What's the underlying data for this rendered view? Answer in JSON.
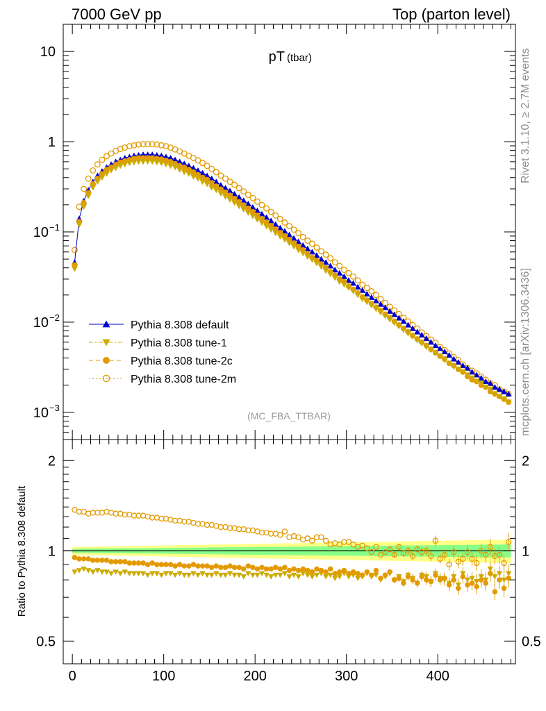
{
  "header": {
    "left": "7000 GeV pp",
    "right": "Top (parton level)"
  },
  "side_text": {
    "upper": "Rivet 3.1.10, ≥ 2.7M events",
    "lower": "mcplots.cern.ch [arXiv:1306.3436]"
  },
  "chart_data": [
    {
      "type": "scatter",
      "title": "pT",
      "title_sub": "(tbar)",
      "watermark": "(MC_FBA_TTBAR)",
      "xlim": [
        -10,
        485
      ],
      "ylim": [
        0.0005,
        20
      ],
      "yscale": "log",
      "x_ticks": [
        0,
        100,
        200,
        300,
        400
      ],
      "y_ticks": [
        {
          "value": 10,
          "label": "10"
        },
        {
          "value": 1,
          "label": "1"
        },
        {
          "value": 0.1,
          "label": "10",
          "exp": "−1"
        },
        {
          "value": 0.01,
          "label": "10",
          "exp": "−2"
        },
        {
          "value": 0.001,
          "label": "10",
          "exp": "−3"
        }
      ],
      "legend_position": "lower-left",
      "x": [
        2.5,
        7.5,
        12.5,
        17.5,
        22.5,
        27.5,
        32.5,
        37.5,
        42.5,
        47.5,
        52.5,
        57.5,
        62.5,
        67.5,
        72.5,
        77.5,
        82.5,
        87.5,
        92.5,
        97.5,
        102.5,
        107.5,
        112.5,
        117.5,
        122.5,
        127.5,
        132.5,
        137.5,
        142.5,
        147.5,
        152.5,
        157.5,
        162.5,
        167.5,
        172.5,
        177.5,
        182.5,
        187.5,
        192.5,
        197.5,
        202.5,
        207.5,
        212.5,
        217.5,
        222.5,
        227.5,
        232.5,
        237.5,
        242.5,
        247.5,
        252.5,
        257.5,
        262.5,
        267.5,
        272.5,
        277.5,
        282.5,
        287.5,
        292.5,
        297.5,
        302.5,
        307.5,
        312.5,
        317.5,
        322.5,
        327.5,
        332.5,
        337.5,
        342.5,
        347.5,
        352.5,
        357.5,
        362.5,
        367.5,
        372.5,
        377.5,
        382.5,
        387.5,
        392.5,
        397.5,
        402.5,
        407.5,
        412.5,
        417.5,
        422.5,
        427.5,
        432.5,
        437.5,
        442.5,
        447.5,
        452.5,
        457.5,
        462.5,
        467.5,
        472.5,
        477.5
      ],
      "series": [
        {
          "name": "Pythia 8.308 default",
          "color": "#0000cc",
          "marker": "triangle-up",
          "line": "solid",
          "values": [
            0.046,
            0.14,
            0.22,
            0.29,
            0.36,
            0.42,
            0.47,
            0.52,
            0.56,
            0.6,
            0.63,
            0.66,
            0.68,
            0.7,
            0.71,
            0.72,
            0.72,
            0.72,
            0.71,
            0.7,
            0.68,
            0.66,
            0.63,
            0.6,
            0.57,
            0.54,
            0.51,
            0.48,
            0.45,
            0.42,
            0.39,
            0.36,
            0.33,
            0.307,
            0.285,
            0.263,
            0.242,
            0.223,
            0.205,
            0.188,
            0.172,
            0.158,
            0.145,
            0.133,
            0.121,
            0.111,
            0.102,
            0.093,
            0.085,
            0.078,
            0.071,
            0.065,
            0.06,
            0.055,
            0.05,
            0.046,
            0.042,
            0.038,
            0.035,
            0.032,
            0.029,
            0.027,
            0.0245,
            0.0225,
            0.0205,
            0.0188,
            0.0172,
            0.0158,
            0.0145,
            0.0132,
            0.0121,
            0.0111,
            0.0102,
            0.0093,
            0.0085,
            0.0078,
            0.0072,
            0.0066,
            0.006,
            0.0055,
            0.0051,
            0.0047,
            0.0043,
            0.0039,
            0.0036,
            0.0033,
            0.0031,
            0.0028,
            0.0026,
            0.0024,
            0.0022,
            0.0021,
            0.0019,
            0.0018,
            0.0017,
            0.0016
          ]
        },
        {
          "name": "Pythia 8.308 tune-1",
          "color": "#ccaa00",
          "marker": "triangle-down",
          "line": "dashdot",
          "values": [
            0.039,
            0.12,
            0.19,
            0.25,
            0.31,
            0.36,
            0.4,
            0.44,
            0.48,
            0.51,
            0.54,
            0.56,
            0.58,
            0.59,
            0.6,
            0.6,
            0.6,
            0.6,
            0.59,
            0.58,
            0.56,
            0.54,
            0.52,
            0.49,
            0.46,
            0.44,
            0.41,
            0.39,
            0.36,
            0.34,
            0.31,
            0.29,
            0.266,
            0.246,
            0.228,
            0.21,
            0.193,
            0.178,
            0.163,
            0.15,
            0.137,
            0.126,
            0.115,
            0.106,
            0.097,
            0.089,
            0.082,
            0.075,
            0.069,
            0.063,
            0.058,
            0.053,
            0.049,
            0.045,
            0.041,
            0.037,
            0.034,
            0.031,
            0.028,
            0.026,
            0.024,
            0.022,
            0.02,
            0.018,
            0.0167,
            0.0153,
            0.014,
            0.0128,
            0.0117,
            0.0107,
            0.0098,
            0.009,
            0.0082,
            0.0075,
            0.0069,
            0.0063,
            0.0058,
            0.0053,
            0.0049,
            0.0045,
            0.0042,
            0.0038,
            0.0035,
            0.0032,
            0.003,
            0.0028,
            0.0026,
            0.0024,
            0.0022,
            0.0021,
            0.0019,
            0.0018,
            0.0016,
            0.0015,
            0.0014,
            0.0013
          ]
        },
        {
          "name": "Pythia 8.308 tune-2c",
          "color": "#e39a00",
          "marker": "circle",
          "line": "dashed",
          "values": [
            0.043,
            0.13,
            0.21,
            0.27,
            0.34,
            0.39,
            0.44,
            0.49,
            0.52,
            0.56,
            0.59,
            0.61,
            0.63,
            0.65,
            0.66,
            0.66,
            0.66,
            0.66,
            0.65,
            0.64,
            0.62,
            0.6,
            0.57,
            0.54,
            0.52,
            0.49,
            0.46,
            0.43,
            0.4,
            0.38,
            0.35,
            0.32,
            0.297,
            0.275,
            0.254,
            0.234,
            0.215,
            0.198,
            0.182,
            0.167,
            0.153,
            0.14,
            0.128,
            0.117,
            0.107,
            0.098,
            0.09,
            0.082,
            0.075,
            0.069,
            0.063,
            0.057,
            0.052,
            0.048,
            0.044,
            0.04,
            0.036,
            0.033,
            0.03,
            0.028,
            0.025,
            0.023,
            0.021,
            0.019,
            0.0175,
            0.016,
            0.0146,
            0.0134,
            0.0122,
            0.0112,
            0.0102,
            0.0093,
            0.0085,
            0.0078,
            0.0071,
            0.0065,
            0.006,
            0.0055,
            0.005,
            0.0046,
            0.0042,
            0.0039,
            0.0035,
            0.0033,
            0.003,
            0.0028,
            0.0025,
            0.0023,
            0.0022,
            0.002,
            0.0019,
            0.0017,
            0.0016,
            0.0015,
            0.0014,
            0.0013
          ]
        },
        {
          "name": "Pythia 8.308 tune-2m",
          "color": "#e39a00",
          "marker": "open-circle",
          "line": "dotted",
          "values": [
            0.063,
            0.19,
            0.3,
            0.39,
            0.48,
            0.56,
            0.63,
            0.69,
            0.74,
            0.79,
            0.83,
            0.86,
            0.89,
            0.91,
            0.93,
            0.94,
            0.94,
            0.94,
            0.93,
            0.91,
            0.89,
            0.86,
            0.82,
            0.78,
            0.74,
            0.7,
            0.66,
            0.62,
            0.58,
            0.54,
            0.5,
            0.46,
            0.42,
            0.39,
            0.36,
            0.333,
            0.306,
            0.281,
            0.258,
            0.237,
            0.217,
            0.199,
            0.182,
            0.167,
            0.152,
            0.139,
            0.127,
            0.116,
            0.106,
            0.097,
            0.088,
            0.08,
            0.074,
            0.067,
            0.061,
            0.056,
            0.051,
            0.046,
            0.042,
            0.038,
            0.035,
            0.032,
            0.029,
            0.026,
            0.024,
            0.022,
            0.02,
            0.018,
            0.0163,
            0.0148,
            0.0135,
            0.0123,
            0.0112,
            0.0102,
            0.0093,
            0.0085,
            0.0077,
            0.007,
            0.0064,
            0.0059,
            0.0053,
            0.0049,
            0.0045,
            0.0041,
            0.0038,
            0.0034,
            0.0031,
            0.0029,
            0.0027,
            0.0025,
            0.0023,
            0.0021,
            0.002,
            0.0018,
            0.0017,
            0.0016
          ]
        }
      ]
    },
    {
      "type": "scatter",
      "ylabel": "Ratio to Pythia 8.308 default",
      "xlim": [
        -10,
        485
      ],
      "ylim": [
        0.42,
        2.35
      ],
      "yscale": "log",
      "reference_line": 1,
      "y_ticks": [
        {
          "value": 2,
          "label": "2"
        },
        {
          "value": 1,
          "label": "1"
        },
        {
          "value": 0.5,
          "label": "0.5"
        }
      ],
      "x_ticks": [
        {
          "value": 0,
          "label": "0"
        },
        {
          "value": 100,
          "label": "100"
        },
        {
          "value": 200,
          "label": "200"
        },
        {
          "value": 300,
          "label": "300"
        },
        {
          "value": 400,
          "label": "400"
        }
      ],
      "band_yellow": {
        "color": "#ffff88",
        "x": [
          0,
          480
        ],
        "half_width": [
          0.03,
          0.09
        ]
      },
      "band_green": {
        "color": "#88ff88",
        "x": [
          0,
          480
        ],
        "half_width": [
          0.015,
          0.05
        ]
      },
      "series": [
        {
          "name": "Pythia 8.308 tune-1",
          "color": "#ccaa00",
          "marker": "triangle-down",
          "values": [
            0.85,
            0.86,
            0.87,
            0.86,
            0.85,
            0.86,
            0.85,
            0.85,
            0.84,
            0.85,
            0.84,
            0.85,
            0.84,
            0.84,
            0.84,
            0.84,
            0.83,
            0.84,
            0.84,
            0.83,
            0.84,
            0.84,
            0.83,
            0.84,
            0.83,
            0.83,
            0.84,
            0.83,
            0.84,
            0.83,
            0.83,
            0.84,
            0.83,
            0.83,
            0.84,
            0.83,
            0.83,
            0.82,
            0.84,
            0.83,
            0.83,
            0.84,
            0.83,
            0.82,
            0.83,
            0.83,
            0.84,
            0.82,
            0.83,
            0.82,
            0.84,
            0.83,
            0.82,
            0.83,
            0.84,
            0.82,
            0.83,
            0.81,
            0.82,
            0.84,
            0.82,
            0.83,
            0.81,
            0.82,
            0.84,
            0.82,
            0.83,
            0.8,
            0.82,
            0.84,
            0.8,
            0.82,
            0.79,
            0.83,
            0.81,
            0.78,
            0.83,
            0.82,
            0.79,
            0.84,
            0.81,
            0.8,
            0.78,
            0.82,
            0.77,
            0.84,
            0.8,
            0.81,
            0.79,
            0.82,
            0.8,
            0.87,
            0.82,
            0.84,
            0.8,
            0.84
          ]
        },
        {
          "name": "Pythia 8.308 tune-2c",
          "color": "#e39a00",
          "marker": "circle",
          "values": [
            0.95,
            0.94,
            0.94,
            0.94,
            0.93,
            0.93,
            0.93,
            0.93,
            0.92,
            0.92,
            0.92,
            0.92,
            0.91,
            0.91,
            0.91,
            0.91,
            0.9,
            0.91,
            0.9,
            0.9,
            0.9,
            0.9,
            0.89,
            0.9,
            0.89,
            0.89,
            0.9,
            0.89,
            0.89,
            0.89,
            0.88,
            0.89,
            0.88,
            0.88,
            0.89,
            0.88,
            0.88,
            0.87,
            0.89,
            0.88,
            0.87,
            0.88,
            0.87,
            0.87,
            0.88,
            0.87,
            0.88,
            0.86,
            0.87,
            0.86,
            0.87,
            0.86,
            0.85,
            0.87,
            0.86,
            0.85,
            0.87,
            0.84,
            0.85,
            0.86,
            0.84,
            0.85,
            0.84,
            0.83,
            0.85,
            0.83,
            0.86,
            0.81,
            0.83,
            0.85,
            0.8,
            0.81,
            0.78,
            0.82,
            0.8,
            0.78,
            0.82,
            0.8,
            0.79,
            0.83,
            0.8,
            0.81,
            0.77,
            0.8,
            0.75,
            0.82,
            0.77,
            0.78,
            0.76,
            0.8,
            0.78,
            0.84,
            0.73,
            0.8,
            0.75,
            0.81
          ]
        },
        {
          "name": "Pythia 8.308 tune-2m",
          "color": "#e39a00",
          "marker": "open-circle",
          "values": [
            1.37,
            1.35,
            1.35,
            1.33,
            1.34,
            1.34,
            1.34,
            1.35,
            1.34,
            1.33,
            1.33,
            1.32,
            1.32,
            1.31,
            1.31,
            1.31,
            1.3,
            1.29,
            1.29,
            1.28,
            1.28,
            1.27,
            1.26,
            1.26,
            1.25,
            1.25,
            1.24,
            1.23,
            1.23,
            1.22,
            1.22,
            1.21,
            1.2,
            1.2,
            1.19,
            1.19,
            1.18,
            1.18,
            1.17,
            1.17,
            1.16,
            1.15,
            1.15,
            1.14,
            1.14,
            1.13,
            1.16,
            1.11,
            1.12,
            1.11,
            1.09,
            1.1,
            1.08,
            1.11,
            1.11,
            1.08,
            1.05,
            1.06,
            1.05,
            1.07,
            1.07,
            1.05,
            1.03,
            1.04,
            1.02,
            0.99,
            1.03,
            0.97,
            0.99,
            1.01,
            0.97,
            1.03,
            0.98,
            1.0,
            0.96,
            1.01,
            0.99,
            1.0,
            0.96,
            1.08,
            0.94,
            0.97,
            0.9,
            0.99,
            0.92,
            0.94,
            0.99,
            0.94,
            0.91,
            1.0,
            0.97,
            1.03,
            0.96,
            0.97,
            0.91,
            1.07
          ]
        }
      ]
    }
  ]
}
